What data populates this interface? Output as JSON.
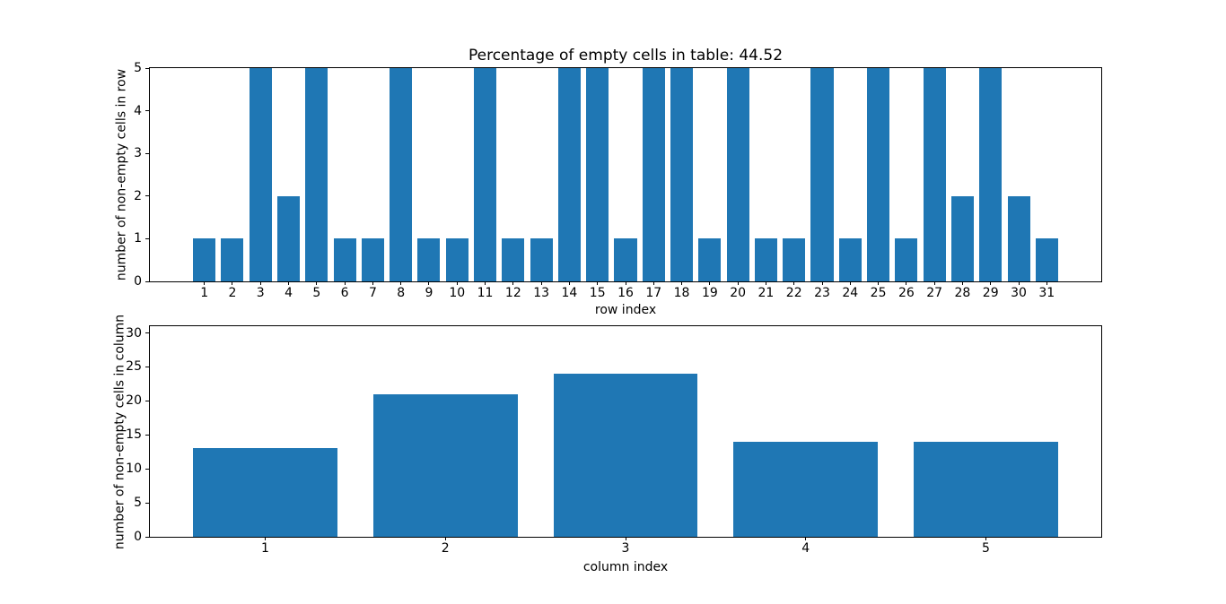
{
  "figure": {
    "background": "#ffffff",
    "bar_color": "#1f77b4",
    "axis_color": "#000000"
  },
  "chart_data": [
    {
      "type": "bar",
      "title": "Percentage of empty cells in table: 44.52",
      "xlabel": "row index",
      "ylabel": "number of non-empty cells in row",
      "categories": [
        1,
        2,
        3,
        4,
        5,
        6,
        7,
        8,
        9,
        10,
        11,
        12,
        13,
        14,
        15,
        16,
        17,
        18,
        19,
        20,
        21,
        22,
        23,
        24,
        25,
        26,
        27,
        28,
        29,
        30,
        31
      ],
      "values": [
        1,
        1,
        5,
        2,
        5,
        1,
        1,
        5,
        1,
        1,
        5,
        1,
        1,
        5,
        5,
        1,
        5,
        5,
        1,
        5,
        1,
        1,
        5,
        1,
        5,
        1,
        5,
        2,
        5,
        2,
        1
      ],
      "ylim": [
        0,
        5
      ],
      "yticks": [
        0,
        1,
        2,
        3,
        4,
        5
      ],
      "bar_width": 0.8,
      "grid": false,
      "legend": "none"
    },
    {
      "type": "bar",
      "title": "",
      "xlabel": "column index",
      "ylabel": "number of non-empty cells in column",
      "categories": [
        1,
        2,
        3,
        4,
        5
      ],
      "values": [
        13,
        21,
        24,
        14,
        14
      ],
      "ylim": [
        0,
        31
      ],
      "yticks": [
        0,
        5,
        10,
        15,
        20,
        25,
        30
      ],
      "bar_width": 0.8,
      "grid": false,
      "legend": "none"
    }
  ]
}
